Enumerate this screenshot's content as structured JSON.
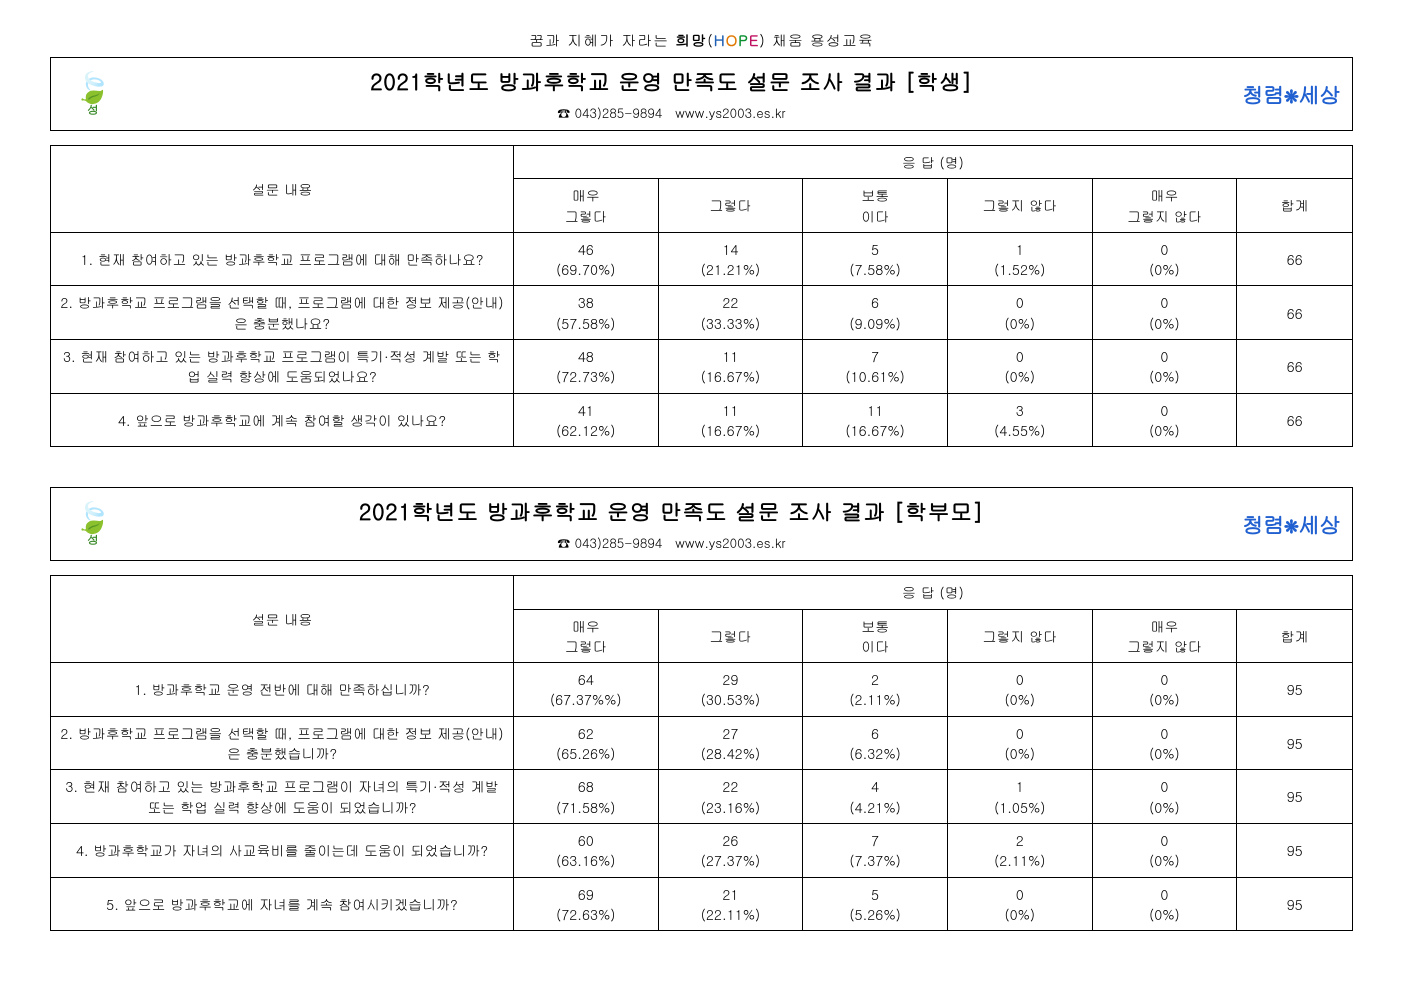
{
  "tagline": {
    "prefix": "꿈과 지혜가 자라는 ",
    "bold": "희망",
    "hope_open": "(",
    "hope_h": "H",
    "hope_o": "O",
    "hope_p": "P",
    "hope_e": "E",
    "hope_close": ")",
    "suffix": " 채움 용성교육"
  },
  "contact": {
    "phone_icon": "☎",
    "phone": "043)285-9894",
    "url": "www.ys2003.es.kr"
  },
  "logo_left": {
    "icon": "🍃",
    "text": "성"
  },
  "logo_right": {
    "text": "청렴",
    "icon": "❋",
    "text2": "세상"
  },
  "table_headers": {
    "question": "설문 내용",
    "response_group": "응 답 (명)",
    "col1": "매우\n그렇다",
    "col2": "그렇다",
    "col3": "보통\n이다",
    "col4": "그렇지 않다",
    "col5": "매우\n그렇지 않다",
    "col_total": "합계"
  },
  "sections": [
    {
      "title": "2021학년도 방과후학교 운영 만족도 설문 조사 결과 [학생]",
      "rows": [
        {
          "q": "1. 현재 참여하고 있는 방과후학교 프로그램에 대해 만족하나요?",
          "r": [
            {
              "v": "46",
              "p": "(69.70%)"
            },
            {
              "v": "14",
              "p": "(21.21%)"
            },
            {
              "v": "5",
              "p": "(7.58%)"
            },
            {
              "v": "1",
              "p": "(1.52%)"
            },
            {
              "v": "0",
              "p": "(0%)"
            }
          ],
          "total": "66"
        },
        {
          "q": "2. 방과후학교 프로그램을 선택할 때, 프로그램에 대한 정보 제공(안내)은 충분했나요?",
          "r": [
            {
              "v": "38",
              "p": "(57.58%)"
            },
            {
              "v": "22",
              "p": "(33.33%)"
            },
            {
              "v": "6",
              "p": "(9.09%)"
            },
            {
              "v": "0",
              "p": "(0%)"
            },
            {
              "v": "0",
              "p": "(0%)"
            }
          ],
          "total": "66"
        },
        {
          "q": "3. 현재 참여하고 있는 방과후학교 프로그램이 특기·적성 계발 또는 학업 실력 향상에 도움되었나요?",
          "r": [
            {
              "v": "48",
              "p": "(72.73%)"
            },
            {
              "v": "11",
              "p": "(16.67%)"
            },
            {
              "v": "7",
              "p": "(10.61%)"
            },
            {
              "v": "0",
              "p": "(0%)"
            },
            {
              "v": "0",
              "p": "(0%)"
            }
          ],
          "total": "66"
        },
        {
          "q": "4. 앞으로 방과후학교에 계속 참여할 생각이 있나요?",
          "r": [
            {
              "v": "41",
              "p": "(62.12%)"
            },
            {
              "v": "11",
              "p": "(16.67%)"
            },
            {
              "v": "11",
              "p": "(16.67%)"
            },
            {
              "v": "3",
              "p": "(4.55%)"
            },
            {
              "v": "0",
              "p": "(0%)"
            }
          ],
          "total": "66"
        }
      ]
    },
    {
      "title": "2021학년도 방과후학교 운영 만족도 설문 조사 결과 [학부모]",
      "rows": [
        {
          "q": "1. 방과후학교 운영 전반에 대해 만족하십니까?",
          "r": [
            {
              "v": "64",
              "p": "(67.37%%)"
            },
            {
              "v": "29",
              "p": "(30.53%)"
            },
            {
              "v": "2",
              "p": "(2.11%)"
            },
            {
              "v": "0",
              "p": "(0%)"
            },
            {
              "v": "0",
              "p": "(0%)"
            }
          ],
          "total": "95"
        },
        {
          "q": "2. 방과후학교 프로그램을 선택할 때, 프로그램에 대한 정보 제공(안내)은 충분했습니까?",
          "r": [
            {
              "v": "62",
              "p": "(65.26%)"
            },
            {
              "v": "27",
              "p": "(28.42%)"
            },
            {
              "v": "6",
              "p": "(6.32%)"
            },
            {
              "v": "0",
              "p": "(0%)"
            },
            {
              "v": "0",
              "p": "(0%)"
            }
          ],
          "total": "95"
        },
        {
          "q": "3. 현재 참여하고 있는 방과후학교 프로그램이 자녀의 특기·적성 계발 또는 학업 실력 향상에 도움이 되었습니까?",
          "r": [
            {
              "v": "68",
              "p": "(71.58%)"
            },
            {
              "v": "22",
              "p": "(23.16%)"
            },
            {
              "v": "4",
              "p": "(4.21%)"
            },
            {
              "v": "1",
              "p": "(1.05%)"
            },
            {
              "v": "0",
              "p": "(0%)"
            }
          ],
          "total": "95"
        },
        {
          "q": "4. 방과후학교가 자녀의 사교육비를 줄이는데 도움이 되었습니까?",
          "r": [
            {
              "v": "60",
              "p": "(63.16%)"
            },
            {
              "v": "26",
              "p": "(27.37%)"
            },
            {
              "v": "7",
              "p": "(7.37%)"
            },
            {
              "v": "2",
              "p": "(2.11%)"
            },
            {
              "v": "0",
              "p": "(0%)"
            }
          ],
          "total": "95"
        },
        {
          "q": "5. 앞으로 방과후학교에 자녀를 계속 참여시키겠습니까?",
          "r": [
            {
              "v": "69",
              "p": "(72.63%)"
            },
            {
              "v": "21",
              "p": "(22.11%)"
            },
            {
              "v": "5",
              "p": "(5.26%)"
            },
            {
              "v": "0",
              "p": "(0%)"
            },
            {
              "v": "0",
              "p": "(0%)"
            }
          ],
          "total": "95"
        }
      ]
    }
  ]
}
